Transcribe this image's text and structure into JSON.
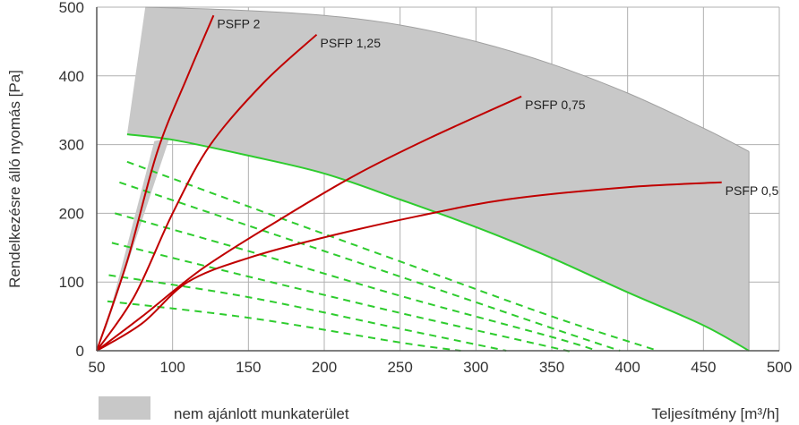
{
  "chart_data": {
    "type": "line",
    "xlabel": "Teljesítmény [m³/h]",
    "ylabel": "Rendelkezésre álló nyomás [Pa]",
    "xlim": [
      50,
      500
    ],
    "ylim": [
      0,
      500
    ],
    "xticks": [
      "50",
      "100",
      "150",
      "200",
      "250",
      "300",
      "350",
      "400",
      "450",
      "500"
    ],
    "yticks": [
      "0",
      "100",
      "200",
      "300",
      "400",
      "500"
    ],
    "grid": true,
    "colors": {
      "region": "#c8c8c8",
      "region_edge": "#a0a0a0",
      "psfp": "#c00000",
      "max_curve": "#2ecc2e",
      "dashed": "#2ecc2e",
      "grid": "#b0b0b0"
    },
    "legend": {
      "placement": "bottom-left",
      "label": "nem ajánlott munkaterület"
    },
    "region": {
      "name": "nem ajánlott munkaterület",
      "top_curve": [
        [
          82,
          500
        ],
        [
          140,
          496
        ],
        [
          200,
          488
        ],
        [
          250,
          474
        ],
        [
          300,
          450
        ],
        [
          350,
          417
        ],
        [
          400,
          375
        ],
        [
          450,
          324
        ],
        [
          480,
          290
        ]
      ],
      "bottom_curve": [
        [
          480,
          0
        ],
        [
          450,
          37
        ],
        [
          400,
          85
        ],
        [
          350,
          135
        ],
        [
          300,
          180
        ],
        [
          250,
          220
        ],
        [
          200,
          258
        ],
        [
          150,
          284
        ],
        [
          100,
          307
        ],
        [
          70,
          315
        ]
      ],
      "left_sliver": [
        [
          52,
          0
        ],
        [
          88,
          305
        ],
        [
          98,
          310
        ],
        [
          55,
          25
        ]
      ]
    },
    "max_curve": {
      "points": [
        [
          70,
          315
        ],
        [
          100,
          307
        ],
        [
          150,
          284
        ],
        [
          200,
          258
        ],
        [
          250,
          220
        ],
        [
          300,
          180
        ],
        [
          350,
          135
        ],
        [
          400,
          85
        ],
        [
          450,
          37
        ],
        [
          480,
          0
        ]
      ]
    },
    "dashed_lines": [
      {
        "points": [
          [
            70,
            275
          ],
          [
            150,
            210
          ],
          [
            250,
            130
          ],
          [
            350,
            50
          ],
          [
            420,
            0
          ]
        ]
      },
      {
        "points": [
          [
            65,
            245
          ],
          [
            150,
            182
          ],
          [
            250,
            108
          ],
          [
            350,
            33
          ],
          [
            395,
            0
          ]
        ]
      },
      {
        "points": [
          [
            62,
            200
          ],
          [
            150,
            145
          ],
          [
            250,
            80
          ],
          [
            350,
            20
          ],
          [
            380,
            0
          ]
        ]
      },
      {
        "points": [
          [
            60,
            157
          ],
          [
            150,
            108
          ],
          [
            250,
            55
          ],
          [
            350,
            5
          ],
          [
            360,
            0
          ]
        ]
      },
      {
        "points": [
          [
            58,
            110
          ],
          [
            150,
            78
          ],
          [
            250,
            32
          ],
          [
            320,
            0
          ]
        ]
      },
      {
        "points": [
          [
            57,
            72
          ],
          [
            150,
            48
          ],
          [
            250,
            12
          ],
          [
            290,
            0
          ]
        ]
      }
    ],
    "series": [
      {
        "name": "PSFP 2",
        "points": [
          [
            50,
            0
          ],
          [
            70,
            130
          ],
          [
            90,
            290
          ],
          [
            110,
            400
          ],
          [
            127,
            488
          ]
        ],
        "label_at": [
          127,
          488
        ]
      },
      {
        "name": "PSFP 1,25",
        "points": [
          [
            50,
            0
          ],
          [
            75,
            80
          ],
          [
            100,
            200
          ],
          [
            125,
            300
          ],
          [
            160,
            390
          ],
          [
            195,
            460
          ]
        ],
        "label_at": [
          195,
          460
        ]
      },
      {
        "name": "PSFP 0,75",
        "points": [
          [
            50,
            0
          ],
          [
            80,
            50
          ],
          [
            120,
            120
          ],
          [
            170,
            190
          ],
          [
            220,
            255
          ],
          [
            270,
            310
          ],
          [
            330,
            370
          ]
        ],
        "label_at": [
          330,
          370
        ]
      },
      {
        "name": "PSFP 0,5",
        "points": [
          [
            50,
            0
          ],
          [
            80,
            40
          ],
          [
            110,
            100
          ],
          [
            150,
            135
          ],
          [
            200,
            165
          ],
          [
            260,
            195
          ],
          [
            320,
            220
          ],
          [
            400,
            238
          ],
          [
            462,
            245
          ]
        ],
        "label_at": [
          462,
          245
        ]
      }
    ]
  }
}
